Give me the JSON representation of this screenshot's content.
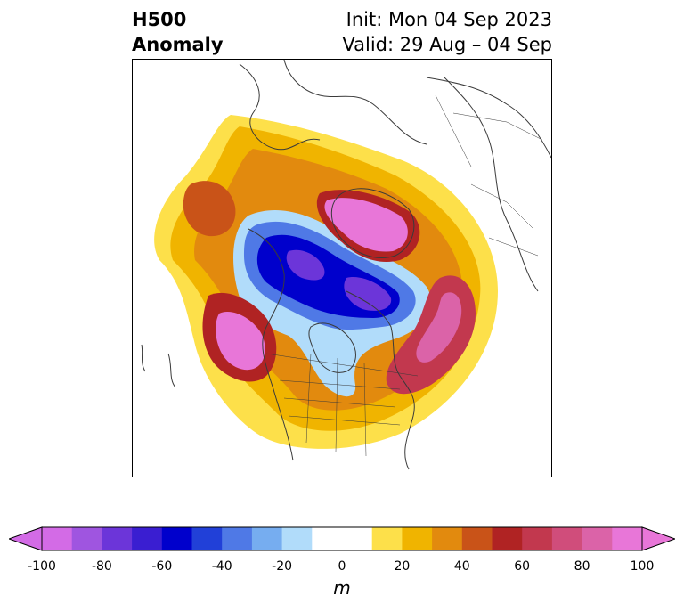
{
  "header": {
    "title_line1": "H500",
    "title_line2": "Anomaly",
    "init_text": "Init: Mon 04 Sep 2023",
    "valid_text": "Valid: 29 Aug – 04 Sep"
  },
  "map": {
    "region": "North America / Arctic polar view",
    "line_color": "#3a3a3a"
  },
  "colorbar": {
    "unit": "m",
    "ticks": [
      "-100",
      "-80",
      "-60",
      "-40",
      "-20",
      "0",
      "20",
      "40",
      "60",
      "80",
      "100"
    ],
    "colors": [
      "#d36be6",
      "#9f55e0",
      "#6c35d9",
      "#3a1ed1",
      "#0000cc",
      "#2140d8",
      "#4f79e6",
      "#76adf0",
      "#b1dcfa",
      "#ffffff",
      "#ffffff",
      "#fde04a",
      "#f0b400",
      "#e28a0e",
      "#c95318",
      "#b02323",
      "#c2384e",
      "#d04d7b",
      "#db63a8",
      "#e876d8"
    ],
    "under_color": "#d36be6",
    "over_color": "#e876d8"
  }
}
